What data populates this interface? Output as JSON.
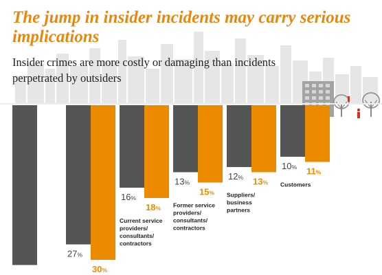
{
  "title": "The jump in insider incidents may carry serious implications",
  "subtitle": "Insider crimes are more costly or damaging than incidents perpetrated by outsiders",
  "colors": {
    "series_dark": "#555555",
    "series_orange": "#ed8b00",
    "label_dark": "#444444",
    "label_orange": "#ed8b00",
    "skyline": "#e6e6e6",
    "building": "#a3a3a3",
    "tree": "#8a8a8a",
    "ground": "#cfcfcf",
    "person": "#d7301f"
  },
  "chart_data": {
    "type": "bar",
    "title": "The jump in insider incidents may carry serious implications",
    "subtitle": "Insider crimes are more costly or damaging than incidents perpetrated by outsiders",
    "orientation": "hanging-down",
    "value_unit": "%",
    "categories": [
      "",
      "",
      "Current service providers/ consultants/ contractors",
      "Former service providers/ consultants/ contractors",
      "Suppliers/ business partners",
      "Customers"
    ],
    "category_lines": [
      [],
      [],
      [
        "Current service",
        "providers/",
        "consultants/",
        "contractors"
      ],
      [
        "Former service",
        "providers/",
        "consultants/",
        "contractors"
      ],
      [
        "Suppliers/",
        "business",
        "partners"
      ],
      [
        "Customers"
      ]
    ],
    "series": [
      {
        "values": [
          31,
          27,
          16,
          13,
          12,
          10
        ]
      },
      {
        "values": [
          null,
          30,
          18,
          15,
          13,
          11
        ]
      }
    ],
    "ylim": [
      0,
      32
    ],
    "grid": false,
    "legend": "none"
  }
}
